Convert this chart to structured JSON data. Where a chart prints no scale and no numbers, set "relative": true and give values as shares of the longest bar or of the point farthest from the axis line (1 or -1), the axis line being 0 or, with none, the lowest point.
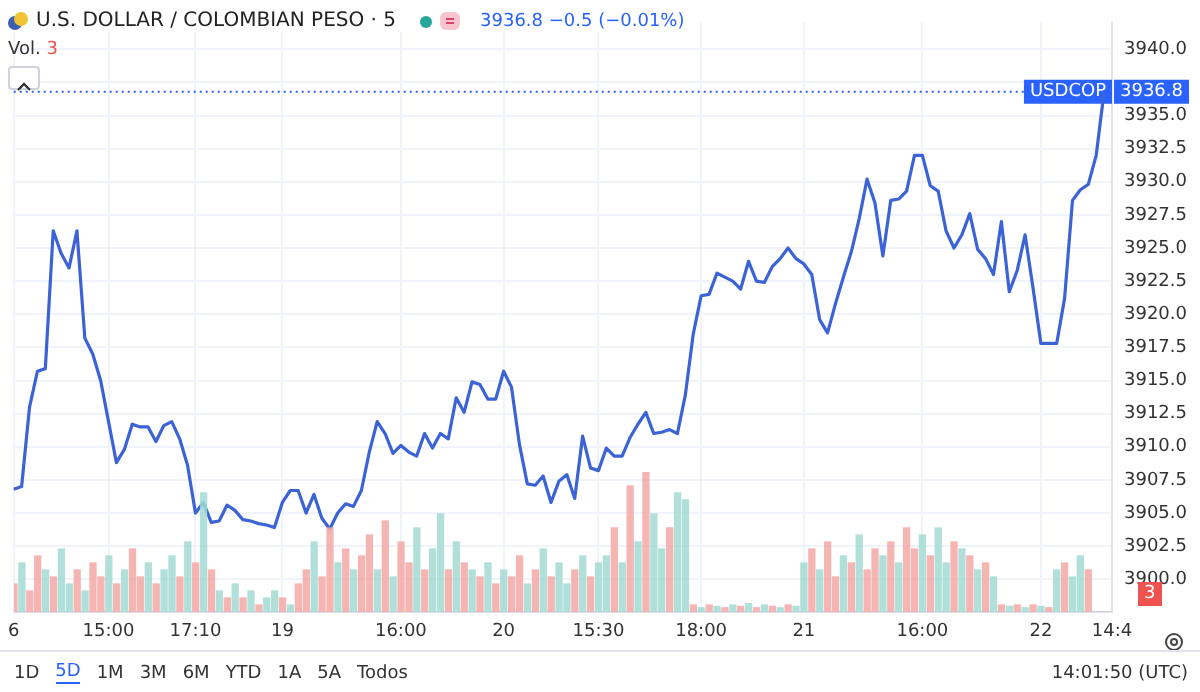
{
  "chart_data": [
    {
      "type": "line",
      "title": "U.S. DOLLAR / COLOMBIAN PESO · 5",
      "subtitle": "3936.8 −0.5 (−0.01%)",
      "annotations": [
        "1D",
        "5D",
        "1M",
        "3M",
        "6M",
        "YTD",
        "1A",
        "5A",
        "Todos",
        "14:01:50 (UTC)",
        "USDCOP"
      ],
      "categories": [
        "6",
        null,
        null,
        null,
        null,
        null,
        null,
        null,
        null,
        null,
        null,
        null,
        "15:00",
        null,
        null,
        null,
        null,
        null,
        null,
        null,
        null,
        null,
        null,
        "17:10",
        null,
        null,
        null,
        null,
        null,
        null,
        null,
        null,
        null,
        null,
        "19",
        null,
        null,
        null,
        null,
        null,
        null,
        null,
        null,
        null,
        null,
        null,
        null,
        null,
        null,
        "16:00",
        null,
        null,
        null,
        null,
        null,
        null,
        null,
        null,
        null,
        null,
        null,
        null,
        "20",
        null,
        null,
        null,
        null,
        null,
        null,
        null,
        null,
        null,
        null,
        null,
        "15:30",
        null,
        null,
        null,
        null,
        null,
        null,
        null,
        null,
        null,
        null,
        null,
        null,
        "18:00",
        null,
        null,
        null,
        null,
        null,
        null,
        null,
        null,
        null,
        null,
        null,
        null,
        "21",
        null,
        null,
        null,
        null,
        null,
        null,
        null,
        null,
        null,
        null,
        null,
        null,
        null,
        null,
        "16:00",
        null,
        null,
        null,
        null,
        null,
        null,
        null,
        null,
        null,
        null,
        null,
        null,
        null,
        null,
        "22",
        null,
        null,
        null,
        null,
        null,
        null,
        null,
        null,
        "14:4"
      ],
      "series": [
        {
          "color": "#3b63d6",
          "values": [
            3906.8,
            3907.0,
            3913.0,
            3915.7,
            3915.9,
            3926.3,
            3924.6,
            3923.5,
            3926.3,
            3918.2,
            3917.0,
            3915.0,
            3911.9,
            3908.8,
            3909.8,
            3911.7,
            3911.5,
            3911.5,
            3910.4,
            3911.6,
            3911.9,
            3910.6,
            3908.6,
            3905.0,
            3905.8,
            3904.3,
            3904.4,
            3905.6,
            3905.2,
            3904.5,
            3904.4,
            3904.2,
            3904.1,
            3903.9,
            3905.8,
            3906.7,
            3906.7,
            3905.0,
            3906.4,
            3904.6,
            3903.8,
            3905.0,
            3905.7,
            3905.5,
            3906.7,
            3909.6,
            3911.9,
            3911.0,
            3909.5,
            3910.1,
            3909.6,
            3909.3,
            3911.0,
            3909.9,
            3911.0,
            3910.6,
            3913.7,
            3912.6,
            3914.9,
            3914.7,
            3913.6,
            3913.6,
            3915.7,
            3914.5,
            3910.2,
            3907.2,
            3907.1,
            3907.8,
            3905.8,
            3907.4,
            3907.9,
            3906.1,
            3910.8,
            3908.4,
            3908.2,
            3909.9,
            3909.3,
            3909.3,
            3910.7,
            3911.7,
            3912.6,
            3911.0,
            3911.1,
            3911.3,
            3911.0,
            3913.9,
            3918.5,
            3921.4,
            3921.5,
            3923.1,
            3922.8,
            3922.5,
            3921.9,
            3924.0,
            3922.5,
            3922.4,
            3923.6,
            3924.2,
            3925.0,
            3924.2,
            3923.8,
            3923.0,
            3919.6,
            3918.6,
            3920.8,
            3922.8,
            3924.7,
            3927.2,
            3930.2,
            3928.4,
            3924.4,
            3928.6,
            3928.7,
            3929.3,
            3932.0,
            3932.0,
            3929.7,
            3929.3,
            3926.3,
            3925.0,
            3926.0,
            3927.6,
            3924.9,
            3924.2,
            3923.0,
            3927.0,
            3921.7,
            3923.3,
            3926.0,
            3922.0,
            3917.8,
            3917.8,
            3917.8,
            3921.2,
            3928.6,
            3929.4,
            3929.8,
            3932.0,
            3936.8,
            null
          ]
        }
      ],
      "ylim": [
        3897.5,
        3942
      ],
      "yticks": [
        {
          "value": 3900,
          "label": "3900.0"
        },
        {
          "value": 3902.5,
          "label": "3902.5"
        },
        {
          "value": 3905,
          "label": "3905.0"
        },
        {
          "value": 3907.5,
          "label": "3907.5"
        },
        {
          "value": 3910,
          "label": "3910.0"
        },
        {
          "value": 3912.5,
          "label": "3912.5"
        },
        {
          "value": 3915,
          "label": "3915.0"
        },
        {
          "value": 3917.5,
          "label": "3917.5"
        },
        {
          "value": 3920,
          "label": "3920.0"
        },
        {
          "value": 3922.5,
          "label": "3922.5"
        },
        {
          "value": 3925,
          "label": "3925.0"
        },
        {
          "value": 3927.5,
          "label": "3927.5"
        },
        {
          "value": 3930,
          "label": "3930.0"
        },
        {
          "value": 3932.5,
          "label": "3932.5"
        },
        {
          "value": 3935,
          "label": "3935.0"
        },
        {
          "value": 3937.5,
          "label": null
        },
        {
          "value": 3940,
          "label": "3940.0"
        }
      ],
      "ref_lines": [
        {
          "axis": "y",
          "value": 3936.8,
          "label": "3936.8",
          "color": "#2962ff",
          "line_style": "dotted"
        }
      ],
      "grid": true
    },
    {
      "type": "bar",
      "relative": true,
      "title": "Vol.",
      "annotations": [
        "3",
        "3"
      ],
      "tick_labels": false,
      "categories": [
        null,
        null,
        null,
        null,
        null,
        null,
        null,
        null,
        null,
        null,
        null,
        null,
        null,
        null,
        null,
        null,
        null,
        null,
        null,
        null,
        null,
        null,
        null,
        null,
        null,
        null,
        null,
        null,
        null,
        null,
        null,
        null,
        null,
        null,
        null,
        null,
        null,
        null,
        null,
        null,
        null,
        null,
        null,
        null,
        null,
        null,
        null,
        null,
        null,
        null,
        null,
        null,
        null,
        null,
        null,
        null,
        null,
        null,
        null,
        null,
        null,
        null,
        null,
        null,
        null,
        null,
        null,
        null,
        null,
        null,
        null,
        null,
        null,
        null,
        null,
        null,
        null,
        null,
        null,
        null,
        null,
        null,
        null,
        null,
        null,
        null,
        null,
        null,
        null,
        null,
        null,
        null,
        null,
        null,
        null,
        null,
        null,
        null,
        null,
        null,
        null,
        null,
        null,
        null,
        null,
        null,
        null,
        null,
        null,
        null,
        null,
        null,
        null,
        null,
        null,
        null,
        null,
        null,
        null,
        null,
        null,
        null,
        null,
        null,
        null,
        null,
        null,
        null,
        null,
        null,
        null,
        null,
        null,
        null,
        null,
        null,
        null,
        null,
        null,
        null
      ],
      "values": [
        0.2,
        0.35,
        0.15,
        0.4,
        0.3,
        0.25,
        0.45,
        0.2,
        0.3,
        0.15,
        0.35,
        0.25,
        0.4,
        0.2,
        0.3,
        0.45,
        0.25,
        0.35,
        0.2,
        0.3,
        0.4,
        0.25,
        0.5,
        0.35,
        0.85,
        0.3,
        0.15,
        0.1,
        0.2,
        0.1,
        0.15,
        0.05,
        0.1,
        0.15,
        0.1,
        0.05,
        0.2,
        0.3,
        0.5,
        0.25,
        0.6,
        0.35,
        0.45,
        0.3,
        0.4,
        0.55,
        0.3,
        0.65,
        0.25,
        0.5,
        0.35,
        0.6,
        0.3,
        0.45,
        0.7,
        0.3,
        0.5,
        0.35,
        0.3,
        0.25,
        0.35,
        0.2,
        0.3,
        0.25,
        0.4,
        0.2,
        0.3,
        0.45,
        0.25,
        0.35,
        0.2,
        0.3,
        0.4,
        0.25,
        0.35,
        0.4,
        0.6,
        0.35,
        0.9,
        0.5,
        1.0,
        0.7,
        0.45,
        0.6,
        0.85,
        0.8,
        0.05,
        0.03,
        0.05,
        0.04,
        0.03,
        0.05,
        0.04,
        0.06,
        0.03,
        0.05,
        0.04,
        0.03,
        0.05,
        0.04,
        0.35,
        0.45,
        0.3,
        0.5,
        0.25,
        0.4,
        0.35,
        0.55,
        0.3,
        0.45,
        0.4,
        0.5,
        0.35,
        0.6,
        0.45,
        0.55,
        0.4,
        0.6,
        0.35,
        0.5,
        0.45,
        0.4,
        0.3,
        0.35,
        0.25,
        0.05,
        0.04,
        0.05,
        0.03,
        0.05,
        0.04,
        0.03,
        0.3,
        0.35,
        0.25,
        0.4,
        0.3,
        null,
        null,
        null
      ],
      "colors": [
        "#f4a9a6",
        "#a3dbd3",
        "#f4a9a6",
        "#f4a9a6",
        "#a3dbd3",
        "#f4a9a6",
        "#a3dbd3",
        "#a3dbd3",
        "#f4a9a6",
        "#a3dbd3",
        "#f4a9a6",
        "#f4a9a6",
        "#a3dbd3",
        "#f4a9a6",
        "#a3dbd3",
        "#f4a9a6",
        "#f4a9a6",
        "#a3dbd3",
        "#f4a9a6",
        "#a3dbd3",
        "#a3dbd3",
        "#f4a9a6",
        "#a3dbd3",
        "#f4a9a6",
        "#a3dbd3",
        "#f4a9a6",
        "#a3dbd3",
        "#f4a9a6",
        "#a3dbd3",
        "#f4a9a6",
        "#a3dbd3",
        "#f4a9a6",
        "#a3dbd3",
        "#a3dbd3",
        "#f4a9a6",
        "#a3dbd3",
        "#f4a9a6",
        "#f4a9a6",
        "#a3dbd3",
        "#f4a9a6",
        "#f4a9a6",
        "#a3dbd3",
        "#f4a9a6",
        "#a3dbd3",
        "#f4a9a6",
        "#f4a9a6",
        "#a3dbd3",
        "#f4a9a6",
        "#a3dbd3",
        "#f4a9a6",
        "#f4a9a6",
        "#a3dbd3",
        "#f4a9a6",
        "#a3dbd3",
        "#a3dbd3",
        "#f4a9a6",
        "#a3dbd3",
        "#f4a9a6",
        "#a3dbd3",
        "#f4a9a6",
        "#a3dbd3",
        "#f4a9a6",
        "#a3dbd3",
        "#f4a9a6",
        "#f4a9a6",
        "#a3dbd3",
        "#f4a9a6",
        "#a3dbd3",
        "#f4a9a6",
        "#a3dbd3",
        "#a3dbd3",
        "#f4a9a6",
        "#a3dbd3",
        "#f4a9a6",
        "#a3dbd3",
        "#a3dbd3",
        "#f4a9a6",
        "#a3dbd3",
        "#f4a9a6",
        "#a3dbd3",
        "#f4a9a6",
        "#a3dbd3",
        "#a3dbd3",
        "#f4a9a6",
        "#a3dbd3",
        "#a3dbd3",
        "#f4a9a6",
        "#a3dbd3",
        "#f4a9a6",
        "#a3dbd3",
        "#f4a9a6",
        "#a3dbd3",
        "#f4a9a6",
        "#a3dbd3",
        "#f4a9a6",
        "#a3dbd3",
        "#f4a9a6",
        "#a3dbd3",
        "#f4a9a6",
        "#a3dbd3",
        "#a3dbd3",
        "#f4a9a6",
        "#a3dbd3",
        "#f4a9a6",
        "#f4a9a6",
        "#a3dbd3",
        "#f4a9a6",
        "#a3dbd3",
        "#f4a9a6",
        "#f4a9a6",
        "#a3dbd3",
        "#f4a9a6",
        "#a3dbd3",
        "#f4a9a6",
        "#f4a9a6",
        "#a3dbd3",
        "#f4a9a6",
        "#a3dbd3",
        "#a3dbd3",
        "#f4a9a6",
        "#a3dbd3",
        "#f4a9a6",
        "#a3dbd3",
        "#f4a9a6",
        "#a3dbd3",
        "#f4a9a6",
        "#a3dbd3",
        "#f4a9a6",
        "#a3dbd3",
        "#f4a9a6",
        "#a3dbd3",
        "#f4a9a6",
        "#a3dbd3",
        "#f4a9a6",
        "#a3dbd3",
        "#a3dbd3",
        "#f4a9a6",
        "#a3dbd3",
        "#a3dbd3",
        "#a3dbd3"
      ]
    }
  ]
}
